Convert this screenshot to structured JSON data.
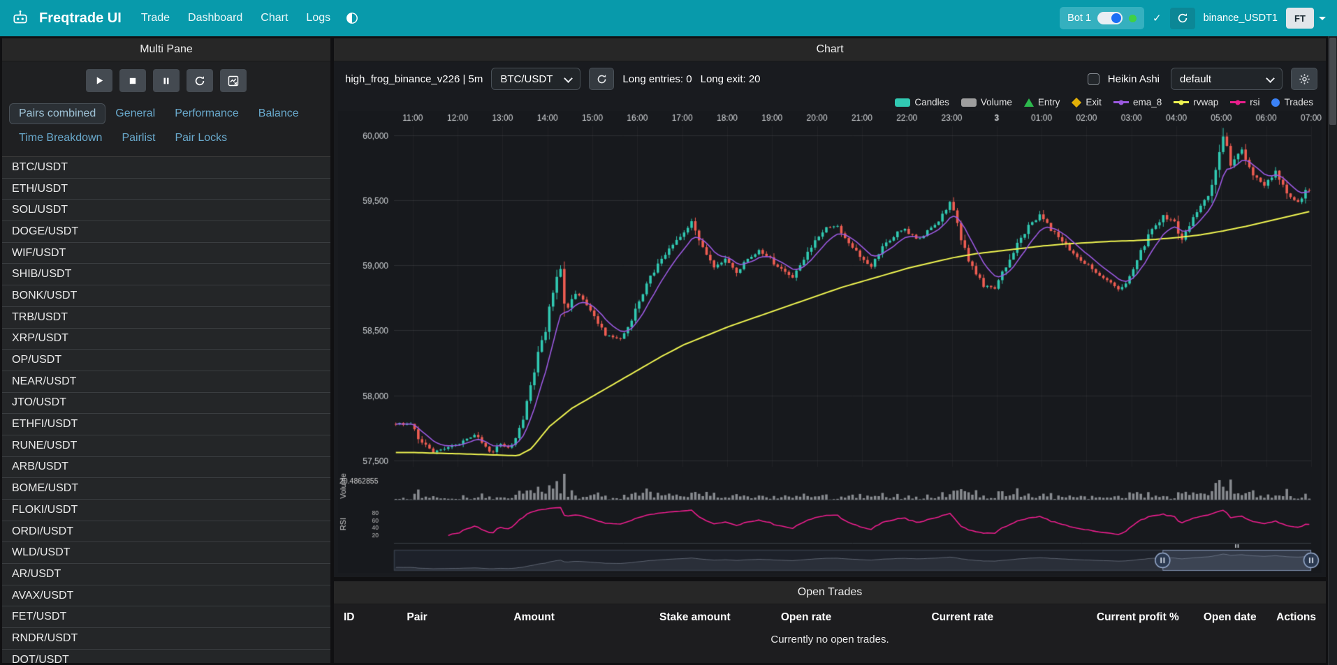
{
  "navbar": {
    "brand": "Freqtrade UI",
    "links": [
      "Trade",
      "Dashboard",
      "Chart",
      "Logs"
    ],
    "bot_name": "Bot 1",
    "check_label": "✓",
    "exchange_account": "binance_USDT1",
    "avatar_initials": "FT"
  },
  "multi_pane": {
    "title": "Multi Pane",
    "tabs": [
      {
        "label": "Pairs combined",
        "active": true
      },
      {
        "label": "General"
      },
      {
        "label": "Performance"
      },
      {
        "label": "Balance"
      },
      {
        "label": "Time Breakdown"
      },
      {
        "label": "Pairlist"
      },
      {
        "label": "Pair Locks"
      }
    ],
    "pairs": [
      "BTC/USDT",
      "ETH/USDT",
      "SOL/USDT",
      "DOGE/USDT",
      "WIF/USDT",
      "SHIB/USDT",
      "BONK/USDT",
      "TRB/USDT",
      "XRP/USDT",
      "OP/USDT",
      "NEAR/USDT",
      "JTO/USDT",
      "ETHFI/USDT",
      "RUNE/USDT",
      "ARB/USDT",
      "BOME/USDT",
      "FLOKI/USDT",
      "ORDI/USDT",
      "WLD/USDT",
      "AR/USDT",
      "AVAX/USDT",
      "FET/USDT",
      "RNDR/USDT",
      "DOT/USDT"
    ]
  },
  "chart_panel": {
    "title": "Chart",
    "strategy_label": "high_frog_binance_v226 | 5m",
    "pair_select": "BTC/USDT",
    "entries_label": "Long entries: 0",
    "exits_label": "Long exit: 20",
    "heikin_ashi_label": "Heikin Ashi",
    "plot_config_select": "default",
    "legend": [
      {
        "label": "Candles",
        "color": "#31c9b2",
        "type": "box"
      },
      {
        "label": "Volume",
        "color": "#9e9e9e",
        "type": "box"
      },
      {
        "label": "Entry",
        "color": "#2db84d",
        "type": "triangle"
      },
      {
        "label": "Exit",
        "color": "#e2b007",
        "type": "diamond"
      },
      {
        "label": "ema_8",
        "color": "#9b59e0",
        "type": "line"
      },
      {
        "label": "rvwap",
        "color": "#eef351",
        "type": "line"
      },
      {
        "label": "rsi",
        "color": "#e91e8c",
        "type": "line"
      },
      {
        "label": "Trades",
        "color": "#3b82f6",
        "type": "circle"
      }
    ]
  },
  "open_trades": {
    "title": "Open Trades",
    "columns": [
      "ID",
      "Pair",
      "Amount",
      "Stake amount",
      "Open rate",
      "Current rate",
      "Current profit %",
      "Open date",
      "Actions"
    ],
    "empty_message": "Currently no open trades."
  },
  "chart_data": {
    "type": "candlestick",
    "pair": "BTC/USDT",
    "timeframe": "5m",
    "hours": 20,
    "lead_candles": 5,
    "seed": 20240503,
    "ylim": [
      57450,
      60070
    ],
    "y_ticks": [
      {
        "label": "60,000",
        "value": 60000
      },
      {
        "label": "59,500",
        "value": 59500
      },
      {
        "label": "59,000",
        "value": 59000
      },
      {
        "label": "58,500",
        "value": 58500
      },
      {
        "label": "58,000",
        "value": 58000
      },
      {
        "label": "57,500",
        "value": 57500
      }
    ],
    "x_ticks": [
      {
        "label": "11:00",
        "hour": 0
      },
      {
        "label": "12:00",
        "hour": 1
      },
      {
        "label": "13:00",
        "hour": 2
      },
      {
        "label": "14:00",
        "hour": 3
      },
      {
        "label": "15:00",
        "hour": 4
      },
      {
        "label": "16:00",
        "hour": 5
      },
      {
        "label": "17:00",
        "hour": 6
      },
      {
        "label": "18:00",
        "hour": 7
      },
      {
        "label": "19:00",
        "hour": 8
      },
      {
        "label": "20:00",
        "hour": 9
      },
      {
        "label": "21:00",
        "hour": 10
      },
      {
        "label": "22:00",
        "hour": 11
      },
      {
        "label": "23:00",
        "hour": 12
      },
      {
        "label": "3",
        "hour": 13,
        "bold": true
      },
      {
        "label": "01:00",
        "hour": 14
      },
      {
        "label": "02:00",
        "hour": 15
      },
      {
        "label": "03:00",
        "hour": 16
      },
      {
        "label": "04:00",
        "hour": 17
      },
      {
        "label": "05:00",
        "hour": 18
      },
      {
        "label": "06:00",
        "hour": 19
      },
      {
        "label": "07:00",
        "hour": 20
      }
    ],
    "price_anchors": [
      [
        0,
        57780
      ],
      [
        0.2,
        57650
      ],
      [
        0.5,
        57560
      ],
      [
        1,
        57620
      ],
      [
        1.4,
        57700
      ],
      [
        1.8,
        57560
      ],
      [
        2,
        57620
      ],
      [
        2.2,
        57580
      ],
      [
        2.5,
        57800
      ],
      [
        2.7,
        58100
      ],
      [
        2.9,
        58400
      ],
      [
        3,
        58500
      ],
      [
        3.2,
        58850
      ],
      [
        3.3,
        59060
      ],
      [
        3.45,
        58650
      ],
      [
        3.7,
        58800
      ],
      [
        4,
        58650
      ],
      [
        4.3,
        58480
      ],
      [
        4.7,
        58430
      ],
      [
        5,
        58650
      ],
      [
        5.3,
        58900
      ],
      [
        5.5,
        59000
      ],
      [
        5.8,
        59150
      ],
      [
        6,
        59230
      ],
      [
        6.25,
        59330
      ],
      [
        6.5,
        59150
      ],
      [
        6.75,
        58980
      ],
      [
        7,
        59060
      ],
      [
        7.25,
        58950
      ],
      [
        7.5,
        59050
      ],
      [
        7.75,
        59120
      ],
      [
        8,
        59050
      ],
      [
        8.3,
        58950
      ],
      [
        8.5,
        58900
      ],
      [
        8.75,
        59050
      ],
      [
        9,
        59180
      ],
      [
        9.25,
        59280
      ],
      [
        9.5,
        59300
      ],
      [
        9.75,
        59180
      ],
      [
        10,
        59070
      ],
      [
        10.25,
        58980
      ],
      [
        10.5,
        59150
      ],
      [
        10.75,
        59230
      ],
      [
        11,
        59280
      ],
      [
        11.25,
        59200
      ],
      [
        11.5,
        59260
      ],
      [
        11.75,
        59330
      ],
      [
        12,
        59500
      ],
      [
        12.1,
        59380
      ],
      [
        12.3,
        59150
      ],
      [
        12.5,
        58980
      ],
      [
        12.75,
        58850
      ],
      [
        13,
        58820
      ],
      [
        13.25,
        59000
      ],
      [
        13.5,
        59180
      ],
      [
        13.75,
        59300
      ],
      [
        14,
        59380
      ],
      [
        14.25,
        59280
      ],
      [
        14.5,
        59180
      ],
      [
        14.75,
        59100
      ],
      [
        15,
        59020
      ],
      [
        15.25,
        58950
      ],
      [
        15.5,
        58880
      ],
      [
        15.75,
        58820
      ],
      [
        16,
        58900
      ],
      [
        16.25,
        59100
      ],
      [
        16.5,
        59280
      ],
      [
        16.75,
        59380
      ],
      [
        17,
        59330
      ],
      [
        17.15,
        59200
      ],
      [
        17.5,
        59400
      ],
      [
        17.75,
        59550
      ],
      [
        18,
        59850
      ],
      [
        18.1,
        60040
      ],
      [
        18.25,
        59800
      ],
      [
        18.5,
        59880
      ],
      [
        18.75,
        59700
      ],
      [
        19,
        59620
      ],
      [
        19.25,
        59720
      ],
      [
        19.5,
        59550
      ],
      [
        19.75,
        59480
      ],
      [
        20,
        59620
      ]
    ],
    "rvwap_anchors": [
      [
        0,
        57560
      ],
      [
        1.5,
        57545
      ],
      [
        2.3,
        57535
      ],
      [
        2.6,
        57590
      ],
      [
        3,
        57760
      ],
      [
        3.5,
        57900
      ],
      [
        4,
        58000
      ],
      [
        4.5,
        58100
      ],
      [
        5,
        58200
      ],
      [
        5.5,
        58300
      ],
      [
        6,
        58390
      ],
      [
        6.5,
        58460
      ],
      [
        7,
        58530
      ],
      [
        7.5,
        58590
      ],
      [
        8,
        58650
      ],
      [
        8.5,
        58710
      ],
      [
        9,
        58770
      ],
      [
        9.5,
        58830
      ],
      [
        10,
        58880
      ],
      [
        10.5,
        58930
      ],
      [
        11,
        58980
      ],
      [
        11.5,
        59020
      ],
      [
        12,
        59060
      ],
      [
        12.5,
        59090
      ],
      [
        13,
        59110
      ],
      [
        13.5,
        59130
      ],
      [
        14,
        59150
      ],
      [
        14.5,
        59165
      ],
      [
        15,
        59175
      ],
      [
        15.5,
        59185
      ],
      [
        16,
        59190
      ],
      [
        16.5,
        59200
      ],
      [
        17,
        59215
      ],
      [
        17.5,
        59235
      ],
      [
        18,
        59265
      ],
      [
        18.5,
        59300
      ],
      [
        19,
        59340
      ],
      [
        19.5,
        59380
      ],
      [
        20,
        59420
      ]
    ],
    "ema_period": 8,
    "rsi_period": 14,
    "volume_label": "Volume",
    "volume_axis_max": "20.4862855",
    "rsi_label": "RSI",
    "rsi_ticks": [
      80,
      60,
      40,
      20
    ],
    "window": [
      0.838,
      1.0
    ],
    "colors": {
      "up": "#31c9b2",
      "down": "#ee5d52",
      "ema": "#9b59e0",
      "rvwap": "#eef351",
      "rsi": "#e91e8c",
      "volume": "rgba(160,163,168,0.82)",
      "grid": "rgba(255,255,255,0.09)",
      "grid_v": "rgba(255,255,255,0.045)",
      "bg": "#17191d",
      "axis_text": "#cfd3d6"
    }
  }
}
